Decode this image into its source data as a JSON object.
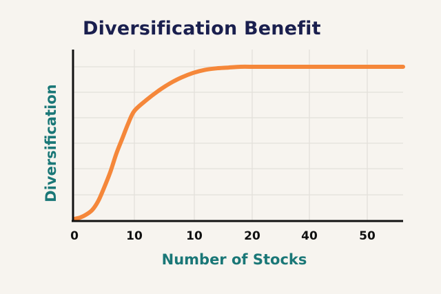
{
  "chart_data": {
    "type": "line",
    "title": "Diversification Benefit",
    "xlabel": "Number of Stocks",
    "ylabel": "Diversification",
    "x_tick_labels": [
      "0",
      "10",
      "10",
      "20",
      "40",
      "50"
    ],
    "grid": true,
    "legend": "none",
    "series": [
      {
        "x": [
          0,
          1,
          2,
          3,
          4,
          5,
          6,
          7,
          8,
          9,
          10,
          11,
          12,
          13,
          14,
          15,
          16,
          17,
          18,
          19,
          20,
          21,
          22,
          23,
          25,
          30,
          40,
          50
        ],
        "y": [
          0.0,
          0.01,
          0.03,
          0.06,
          0.12,
          0.21,
          0.31,
          0.43,
          0.53,
          0.63,
          0.71,
          0.78,
          0.84,
          0.89,
          0.93,
          0.96,
          0.98,
          0.99,
          0.995,
          1.0,
          1.0,
          1.0,
          1.0,
          1.0,
          1.0,
          1.0,
          1.0,
          1.0
        ]
      }
    ],
    "colors": {
      "line": "#f5873a",
      "axis": "#111111",
      "grid": "#e3e0da",
      "title": "#1a1f4e",
      "axis_label": "#1a7777"
    }
  }
}
